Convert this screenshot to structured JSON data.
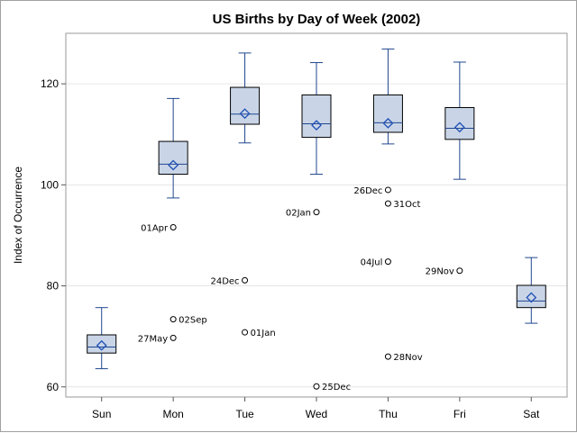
{
  "chart_data": {
    "type": "box",
    "title": "US Births by Day of Week (2002)",
    "xlabel": "",
    "ylabel": "Index of Occurrence",
    "ylim": [
      58,
      130
    ],
    "yticks": [
      60,
      80,
      100,
      120
    ],
    "grid": true,
    "colors": {
      "box_fill": "#c9d5e7",
      "stroke": "#20468f",
      "median": "#20468f",
      "mean_marker": "#1f4fb5",
      "grid": "#e6e6e6",
      "wall": "#9a9a9a"
    },
    "categories": [
      "Sun",
      "Mon",
      "Tue",
      "Wed",
      "Thu",
      "Fri",
      "Sat"
    ],
    "boxes": [
      {
        "category": "Sun",
        "min": 63.6,
        "q1": 66.7,
        "median": 67.9,
        "q3": 70.3,
        "max": 75.7,
        "mean": 68.2
      },
      {
        "category": "Mon",
        "min": 97.4,
        "q1": 102.1,
        "median": 104.1,
        "q3": 108.6,
        "max": 117.1,
        "mean": 103.9
      },
      {
        "category": "Tue",
        "min": 108.3,
        "q1": 112.0,
        "median": 114.0,
        "q3": 119.3,
        "max": 126.1,
        "mean": 114.1
      },
      {
        "category": "Wed",
        "min": 102.1,
        "q1": 109.4,
        "median": 112.1,
        "q3": 117.8,
        "max": 124.2,
        "mean": 111.8
      },
      {
        "category": "Thu",
        "min": 108.1,
        "q1": 110.4,
        "median": 112.3,
        "q3": 117.8,
        "max": 126.9,
        "mean": 112.2
      },
      {
        "category": "Fri",
        "min": 101.1,
        "q1": 109.0,
        "median": 111.2,
        "q3": 115.3,
        "max": 124.3,
        "mean": 111.4
      },
      {
        "category": "Sat",
        "min": 72.6,
        "q1": 75.7,
        "median": 77.0,
        "q3": 80.1,
        "max": 85.6,
        "mean": 77.7
      }
    ],
    "outliers": [
      {
        "category": "Mon",
        "value": 91.6,
        "label": "01Apr",
        "side": "left"
      },
      {
        "category": "Mon",
        "value": 73.4,
        "label": "02Sep",
        "side": "right"
      },
      {
        "category": "Mon",
        "value": 69.7,
        "label": "27May",
        "side": "left"
      },
      {
        "category": "Tue",
        "value": 81.1,
        "label": "24Dec",
        "side": "left"
      },
      {
        "category": "Tue",
        "value": 70.8,
        "label": "01Jan",
        "side": "right"
      },
      {
        "category": "Wed",
        "value": 94.6,
        "label": "02Jan",
        "side": "left"
      },
      {
        "category": "Wed",
        "value": 60.1,
        "label": "25Dec",
        "side": "right"
      },
      {
        "category": "Thu",
        "value": 99.0,
        "label": "26Dec",
        "side": "left"
      },
      {
        "category": "Thu",
        "value": 96.3,
        "label": "31Oct",
        "side": "right"
      },
      {
        "category": "Thu",
        "value": 84.8,
        "label": "04Jul",
        "side": "left"
      },
      {
        "category": "Thu",
        "value": 66.0,
        "label": "28Nov",
        "side": "right"
      },
      {
        "category": "Fri",
        "value": 83.0,
        "label": "29Nov",
        "side": "left"
      }
    ]
  }
}
